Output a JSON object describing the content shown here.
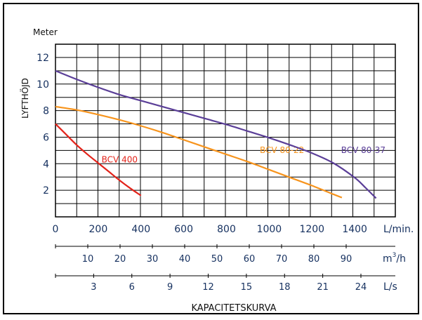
{
  "chart_data": {
    "type": "line",
    "title": "KAPACITETSKURVA",
    "y_unit_label": "Meter",
    "ylabel": "LYFTHÖJD",
    "ylim": [
      0,
      13
    ],
    "y_ticks": [
      2,
      4,
      6,
      8,
      10,
      12
    ],
    "xlim": [
      0,
      1590
    ],
    "x_ticks": [
      0,
      200,
      400,
      600,
      800,
      1000,
      1200,
      1400
    ],
    "x_unit": "L/min.",
    "grid": true,
    "secondary_axes": [
      {
        "unit_base": "m",
        "unit_exp": "3",
        "unit_tail": "/h",
        "ticks": [
          10,
          20,
          30,
          40,
          50,
          60,
          70,
          80,
          90
        ]
      },
      {
        "unit": "L/s",
        "ticks": [
          3,
          6,
          9,
          12,
          15,
          18,
          21,
          24
        ]
      }
    ],
    "series": [
      {
        "name": "BCV 400",
        "color": "#e2231a",
        "label_at": [
          300,
          4.1
        ],
        "x": [
          0,
          50,
          100,
          150,
          200,
          250,
          300,
          350,
          400
        ],
        "y": [
          7.0,
          6.2,
          5.4,
          4.7,
          4.05,
          3.4,
          2.75,
          2.15,
          1.6
        ]
      },
      {
        "name": "BCV 80-22",
        "color": "#f7941d",
        "label_at": [
          1060,
          4.8
        ],
        "x": [
          0,
          100,
          200,
          300,
          400,
          500,
          600,
          700,
          800,
          900,
          1000,
          1100,
          1200,
          1300,
          1340
        ],
        "y": [
          8.3,
          8.05,
          7.7,
          7.3,
          6.85,
          6.35,
          5.8,
          5.25,
          4.7,
          4.15,
          3.55,
          2.95,
          2.35,
          1.7,
          1.45
        ]
      },
      {
        "name": "BCV 80-37",
        "color": "#5b3f98",
        "label_at": [
          1440,
          4.8
        ],
        "x": [
          0,
          100,
          200,
          300,
          400,
          500,
          600,
          700,
          800,
          900,
          1000,
          1100,
          1200,
          1300,
          1400,
          1450,
          1500
        ],
        "y": [
          11.0,
          10.35,
          9.75,
          9.2,
          8.75,
          8.3,
          7.85,
          7.4,
          6.95,
          6.45,
          5.95,
          5.4,
          4.8,
          4.05,
          2.95,
          2.2,
          1.4
        ]
      }
    ]
  }
}
